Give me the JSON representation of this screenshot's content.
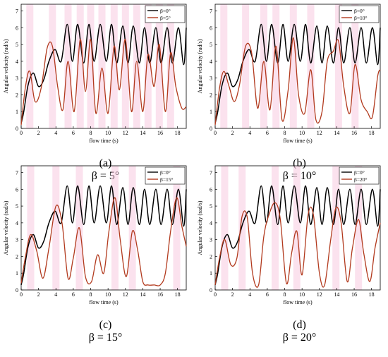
{
  "figure": {
    "panels": [
      {
        "id": "a",
        "caption_label": "(a)",
        "caption_beta": "β = 5°"
      },
      {
        "id": "b",
        "caption_label": "(b)",
        "caption_beta": "β = 10°"
      },
      {
        "id": "c",
        "caption_label": "(c)",
        "caption_beta": "β = 15°"
      },
      {
        "id": "d",
        "caption_label": "(d)",
        "caption_beta": "β = 20°"
      }
    ]
  },
  "colors": {
    "reference": "#000000",
    "variant": "#b23a1e",
    "band": "#f7cbe0"
  },
  "chart_data": [
    {
      "type": "line",
      "title": "",
      "xlabel": "flow time (s)",
      "ylabel": "Angular velocity (rad/s)",
      "xlim": [
        0,
        19
      ],
      "ylim": [
        0,
        7.4
      ],
      "xticks": [
        0,
        2,
        4,
        6,
        8,
        10,
        12,
        14,
        16,
        18
      ],
      "yticks": [
        0,
        1,
        2,
        3,
        4,
        5,
        6,
        7
      ],
      "legend_position": "top-right",
      "series": [
        {
          "name": "β=0°",
          "x": [
            0,
            0.3,
            0.8,
            1.4,
            2.0,
            2.6,
            3.2,
            3.9,
            4.6,
            5.3,
            5.9,
            6.5,
            7.2,
            7.8,
            8.4,
            9.1,
            9.8,
            10.4,
            11.0,
            11.7,
            12.3,
            12.9,
            13.6,
            14.2,
            14.8,
            15.5,
            16.1,
            16.8,
            17.4,
            18.1,
            18.7,
            19.0
          ],
          "y": [
            0.3,
            1.0,
            2.6,
            3.3,
            2.5,
            2.9,
            4.0,
            4.7,
            4.0,
            6.2,
            4.0,
            6.2,
            3.9,
            6.2,
            4.0,
            6.2,
            4.0,
            6.2,
            3.9,
            6.1,
            3.9,
            6.1,
            3.9,
            6.0,
            3.9,
            6.0,
            3.9,
            6.0,
            3.9,
            6.0,
            3.8,
            6.0
          ]
        },
        {
          "name": "β=5°",
          "x": [
            0,
            0.5,
            1.0,
            1.6,
            2.3,
            3.0,
            3.6,
            4.2,
            4.8,
            5.4,
            6.1,
            6.8,
            7.4,
            8.0,
            8.6,
            9.3,
            10.0,
            10.7,
            11.3,
            12.0,
            12.7,
            13.3,
            14.0,
            14.6,
            15.3,
            15.9,
            16.6,
            17.2,
            17.8,
            18.5,
            19.0
          ],
          "y": [
            0.2,
            2.5,
            3.4,
            1.6,
            2.4,
            4.8,
            4.9,
            2.5,
            1.1,
            4.0,
            1.0,
            5.3,
            2.2,
            5.3,
            0.9,
            3.6,
            0.9,
            4.9,
            2.3,
            5.3,
            1.0,
            4.0,
            1.0,
            4.4,
            2.5,
            5.0,
            1.0,
            4.5,
            2.5,
            1.2,
            1.3
          ]
        }
      ]
    },
    {
      "type": "line",
      "title": "",
      "xlabel": "flow time (s)",
      "ylabel": "Angular velocity (rad/s)",
      "xlim": [
        0,
        19
      ],
      "ylim": [
        0,
        7.4
      ],
      "xticks": [
        0,
        2,
        4,
        6,
        8,
        10,
        12,
        14,
        16,
        18
      ],
      "yticks": [
        0,
        1,
        2,
        3,
        4,
        5,
        6,
        7
      ],
      "legend_position": "top-right",
      "series": [
        {
          "name": "β=0°",
          "x": [
            0,
            0.3,
            0.8,
            1.4,
            2.0,
            2.6,
            3.2,
            3.9,
            4.6,
            5.3,
            5.9,
            6.5,
            7.2,
            7.8,
            8.4,
            9.1,
            9.8,
            10.4,
            11.0,
            11.7,
            12.3,
            12.9,
            13.6,
            14.2,
            14.8,
            15.5,
            16.1,
            16.8,
            17.4,
            18.1,
            18.7,
            19.0
          ],
          "y": [
            0.3,
            1.0,
            2.6,
            3.3,
            2.5,
            2.9,
            4.0,
            4.7,
            4.0,
            6.2,
            4.0,
            6.2,
            3.9,
            6.2,
            4.0,
            6.2,
            4.0,
            6.2,
            3.9,
            6.1,
            3.9,
            6.1,
            3.9,
            6.0,
            3.9,
            6.0,
            3.9,
            6.0,
            3.9,
            6.0,
            3.8,
            6.0
          ]
        },
        {
          "name": "β=10°",
          "x": [
            0,
            0.5,
            1.0,
            1.6,
            2.2,
            2.8,
            3.5,
            4.2,
            4.9,
            5.6,
            6.3,
            7.0,
            7.7,
            8.4,
            9.0,
            9.6,
            10.3,
            11.0,
            11.6,
            12.3,
            12.9,
            13.6,
            14.2,
            14.8,
            15.5,
            16.1,
            16.8,
            17.5,
            18.1,
            18.7,
            19.0
          ],
          "y": [
            0.2,
            2.4,
            3.4,
            2.5,
            1.6,
            2.6,
            4.9,
            4.5,
            1.2,
            4.0,
            1.1,
            4.9,
            0.5,
            2.3,
            5.4,
            2.0,
            0.9,
            3.5,
            0.5,
            1.0,
            4.0,
            4.6,
            5.2,
            2.5,
            0.9,
            3.8,
            1.7,
            1.0,
            0.7,
            3.1,
            3.5
          ]
        }
      ]
    },
    {
      "type": "line",
      "title": "",
      "xlabel": "flow time (s)",
      "ylabel": "Angular velocity (rad/s)",
      "xlim": [
        0,
        19
      ],
      "ylim": [
        0,
        7.4
      ],
      "xticks": [
        0,
        2,
        4,
        6,
        8,
        10,
        12,
        14,
        16,
        18
      ],
      "yticks": [
        0,
        1,
        2,
        3,
        4,
        5,
        6,
        7
      ],
      "legend_position": "top-right",
      "series": [
        {
          "name": "β=0°",
          "x": [
            0,
            0.3,
            0.8,
            1.4,
            2.0,
            2.6,
            3.2,
            3.9,
            4.6,
            5.3,
            5.9,
            6.5,
            7.2,
            7.8,
            8.4,
            9.1,
            9.8,
            10.4,
            11.0,
            11.7,
            12.3,
            12.9,
            13.6,
            14.2,
            14.8,
            15.5,
            16.1,
            16.8,
            17.4,
            18.1,
            18.7,
            19.0
          ],
          "y": [
            0.3,
            1.0,
            2.6,
            3.3,
            2.5,
            2.9,
            4.0,
            4.7,
            4.0,
            6.2,
            4.0,
            6.2,
            3.9,
            6.2,
            4.0,
            6.2,
            4.0,
            6.2,
            3.9,
            6.1,
            3.9,
            6.1,
            3.9,
            6.0,
            3.9,
            6.0,
            3.9,
            6.0,
            3.9,
            6.0,
            3.8,
            6.0
          ]
        },
        {
          "name": "β=15°",
          "x": [
            0,
            0.5,
            1.1,
            1.8,
            2.5,
            3.2,
            4.0,
            4.7,
            5.4,
            6.0,
            6.7,
            7.4,
            8.1,
            8.8,
            9.5,
            10.1,
            10.8,
            11.4,
            12.1,
            12.8,
            13.4,
            14.0,
            14.6,
            15.3,
            16.0,
            16.6,
            17.2,
            17.9,
            18.5,
            19.0
          ],
          "y": [
            0.4,
            2.0,
            3.3,
            2.3,
            0.7,
            2.5,
            5.0,
            4.0,
            0.7,
            1.9,
            3.7,
            0.8,
            0.5,
            2.1,
            1.0,
            3.5,
            5.5,
            3.0,
            0.8,
            3.5,
            2.4,
            0.5,
            0.3,
            0.3,
            0.3,
            1.0,
            3.5,
            5.5,
            3.8,
            2.6
          ]
        }
      ]
    },
    {
      "type": "line",
      "title": "",
      "xlabel": "flow time (s)",
      "ylabel": "Angular velocity (rad/s)",
      "xlim": [
        0,
        19
      ],
      "ylim": [
        0,
        7.4
      ],
      "xticks": [
        0,
        2,
        4,
        6,
        8,
        10,
        12,
        14,
        16,
        18
      ],
      "yticks": [
        0,
        1,
        2,
        3,
        4,
        5,
        6,
        7
      ],
      "legend_position": "top-right",
      "series": [
        {
          "name": "β=0°",
          "x": [
            0,
            0.3,
            0.8,
            1.4,
            2.0,
            2.6,
            3.2,
            3.9,
            4.6,
            5.3,
            5.9,
            6.5,
            7.2,
            7.8,
            8.4,
            9.1,
            9.8,
            10.4,
            11.0,
            11.7,
            12.3,
            12.9,
            13.6,
            14.2,
            14.8,
            15.5,
            16.1,
            16.8,
            17.4,
            18.1,
            18.7,
            19.0
          ],
          "y": [
            0.3,
            1.0,
            2.6,
            3.3,
            2.5,
            2.9,
            4.0,
            4.7,
            4.0,
            6.2,
            4.0,
            6.2,
            3.9,
            6.2,
            4.0,
            6.2,
            4.0,
            6.2,
            3.9,
            6.1,
            3.9,
            6.1,
            3.9,
            6.0,
            3.9,
            6.0,
            3.9,
            6.0,
            3.9,
            6.0,
            3.8,
            6.0
          ]
        },
        {
          "name": "β=20°",
          "x": [
            0,
            0.5,
            1.1,
            1.8,
            2.5,
            3.1,
            3.7,
            4.3,
            5.0,
            5.6,
            6.2,
            6.9,
            7.5,
            8.2,
            8.8,
            9.4,
            10.0,
            10.7,
            11.3,
            12.0,
            12.6,
            13.3,
            13.9,
            14.5,
            15.2,
            15.8,
            16.5,
            17.1,
            17.8,
            18.4,
            19.0
          ],
          "y": [
            0.3,
            1.9,
            3.0,
            1.5,
            1.9,
            4.4,
            4.3,
            1.0,
            0.3,
            3.2,
            4.5,
            5.2,
            4.2,
            0.4,
            2.2,
            3.5,
            0.9,
            4.5,
            4.5,
            1.0,
            0.3,
            3.0,
            4.9,
            4.0,
            0.5,
            2.5,
            4.2,
            2.2,
            0.5,
            2.5,
            4.0
          ]
        }
      ]
    }
  ]
}
